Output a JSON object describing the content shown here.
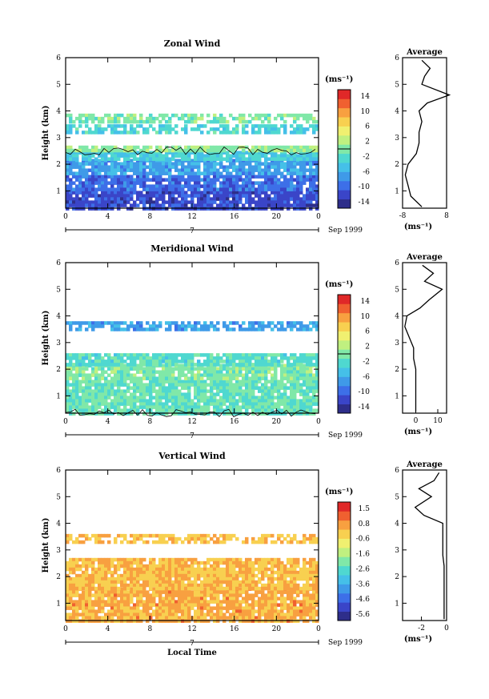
{
  "figure": {
    "date_label": "Sep 1999",
    "date_tick_label": "7",
    "x_axis_label": "Local Time",
    "y_axis_label": "Height (km)",
    "profile_title": "Average"
  },
  "chart_data": [
    {
      "type": "heatmap",
      "title": "Zonal Wind",
      "xlabel": "",
      "ylabel": "Height (km)",
      "xlim": [
        0,
        24
      ],
      "ylim": [
        0.35,
        6
      ],
      "x_ticks": [
        "0",
        "4",
        "8",
        "12",
        "16",
        "20",
        "0"
      ],
      "y_ticks": [
        "1",
        "2",
        "3",
        "4",
        "5",
        "6"
      ],
      "colorbar": {
        "unit": "(ms⁻¹)",
        "range": [
          -16,
          16
        ],
        "tick_labels": [
          "14",
          "10",
          "6",
          "2",
          "-2",
          "-6",
          "-10",
          "-14"
        ],
        "zero_contour": 0
      },
      "bands": [
        {
          "y0": 0.35,
          "y1": 1.0,
          "value": -12
        },
        {
          "y0": 1.0,
          "y1": 1.6,
          "value": -10
        },
        {
          "y0": 1.6,
          "y1": 2.2,
          "value": -7
        },
        {
          "y0": 2.2,
          "y1": 2.5,
          "value": -4
        },
        {
          "y0": 2.5,
          "y1": 2.7,
          "value": 1
        },
        {
          "y0": 3.2,
          "y1": 3.5,
          "value": -3,
          "patchy": true
        },
        {
          "y0": 3.6,
          "y1": 3.9,
          "value": 0,
          "patchy": true
        }
      ],
      "average_profile": {
        "xlabel": "(ms⁻¹)",
        "x_ticks": [
          "-8",
          "8"
        ],
        "xlim": [
          -8,
          8
        ],
        "y": [
          0.4,
          0.8,
          1.2,
          1.6,
          2.0,
          2.4,
          2.8,
          3.2,
          3.6,
          4.0,
          4.3,
          4.6,
          5.0,
          5.3,
          5.6,
          5.9
        ],
        "x": [
          -1,
          -5,
          -6,
          -7,
          -6,
          -3,
          -2,
          -2,
          -1,
          -2,
          1,
          9,
          -1,
          0,
          2,
          -1
        ]
      }
    },
    {
      "type": "heatmap",
      "title": "Meridional Wind",
      "xlabel": "",
      "ylabel": "Height (km)",
      "xlim": [
        0,
        24
      ],
      "ylim": [
        0.35,
        6
      ],
      "x_ticks": [
        "0",
        "4",
        "8",
        "12",
        "16",
        "20",
        "0"
      ],
      "y_ticks": [
        "1",
        "2",
        "3",
        "4",
        "5",
        "6"
      ],
      "colorbar": {
        "unit": "(ms⁻¹)",
        "range": [
          -16,
          16
        ],
        "tick_labels": [
          "14",
          "10",
          "6",
          "2",
          "-2",
          "-6",
          "-10",
          "-14"
        ],
        "zero_contour": 0
      },
      "bands": [
        {
          "y0": 0.35,
          "y1": 1.6,
          "value": -1
        },
        {
          "y0": 1.6,
          "y1": 2.2,
          "value": 0
        },
        {
          "y0": 2.2,
          "y1": 2.6,
          "value": -2
        },
        {
          "y0": 3.5,
          "y1": 3.8,
          "value": -7,
          "patchy": true
        }
      ],
      "average_profile": {
        "xlabel": "(ms⁻¹)",
        "x_ticks": [
          "0",
          "10"
        ],
        "xlim": [
          -6,
          14
        ],
        "y": [
          0.4,
          0.8,
          1.2,
          1.6,
          2.0,
          2.4,
          2.8,
          3.2,
          3.6,
          4.0,
          4.3,
          4.6,
          5.0,
          5.3,
          5.6,
          5.9
        ],
        "x": [
          0,
          0,
          0,
          0,
          0,
          -1,
          -1,
          -3,
          -5,
          -4,
          2,
          6,
          12,
          4,
          8,
          3
        ]
      }
    },
    {
      "type": "heatmap",
      "title": "Vertical Wind",
      "xlabel": "Local Time",
      "ylabel": "Height (km)",
      "xlim": [
        0,
        24
      ],
      "ylim": [
        0.35,
        6
      ],
      "x_ticks": [
        "0",
        "4",
        "8",
        "12",
        "16",
        "20",
        "0"
      ],
      "y_ticks": [
        "1",
        "2",
        "3",
        "4",
        "5",
        "6"
      ],
      "colorbar": {
        "unit": "(ms⁻¹)",
        "range": [
          -6.5,
          2.5
        ],
        "tick_labels": [
          "1.5",
          "0.8",
          "-0.6",
          "-1.6",
          "-2.6",
          "-3.6",
          "-4.6",
          "-5.6"
        ],
        "zero_contour": null
      },
      "bands": [
        {
          "y0": 0.35,
          "y1": 1.6,
          "value": 0.6
        },
        {
          "y0": 1.6,
          "y1": 2.7,
          "value": 0.4
        },
        {
          "y0": 3.3,
          "y1": 3.6,
          "value": 0.3,
          "patchy": true
        }
      ],
      "average_profile": {
        "xlabel": "(ms⁻¹)",
        "x_ticks": [
          "-2",
          "0"
        ],
        "xlim": [
          -3.5,
          0
        ],
        "y": [
          0.4,
          0.8,
          1.2,
          1.6,
          2.0,
          2.4,
          2.8,
          3.2,
          3.6,
          4.0,
          4.3,
          4.6,
          5.0,
          5.3,
          5.6,
          5.9
        ],
        "x": [
          -0.2,
          -0.2,
          -0.2,
          -0.2,
          -0.2,
          -0.2,
          -0.3,
          -0.3,
          -0.3,
          -0.3,
          -1.8,
          -2.5,
          -1.2,
          -2.2,
          -1.0,
          -0.6
        ]
      }
    }
  ]
}
